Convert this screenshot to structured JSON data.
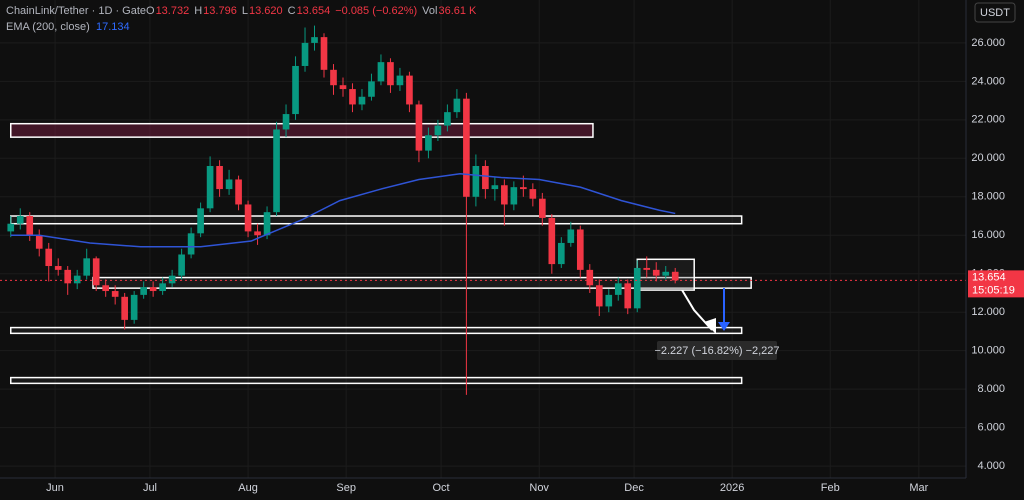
{
  "header": {
    "symbol": "ChainLink/Tether · 1D · Gate",
    "quote": [
      {
        "label": "O",
        "value": 13.732
      },
      {
        "label": "H",
        "value": 13.796
      },
      {
        "label": "L",
        "value": 13.62
      },
      {
        "label": "C",
        "value": 13.654
      }
    ],
    "change": "−0.085 (−0.62%)",
    "volume_label": "Vol",
    "volume": "36.61 K",
    "indicator": "EMA (200, close)",
    "indicator_value": 17.134
  },
  "currency_button": "USDT",
  "chart_data": {
    "type": "candlestick",
    "x": [
      -14,
      -11,
      -8,
      -5,
      -2,
      1,
      4,
      7,
      10,
      13,
      16,
      19,
      22,
      25,
      28,
      31,
      34,
      37,
      40,
      43,
      46,
      49,
      52,
      55,
      58,
      61,
      64,
      67,
      70,
      73,
      76,
      79,
      82,
      85,
      88,
      91,
      94,
      97,
      100,
      103,
      106,
      109,
      112,
      115,
      118,
      121,
      124,
      127,
      130,
      133,
      136,
      139,
      142,
      145,
      148,
      151,
      154,
      157,
      160,
      163,
      166,
      169,
      172,
      175,
      178,
      181,
      184,
      187,
      190,
      193,
      196
    ],
    "open": [
      16.2,
      16.6,
      17.0,
      16.0,
      15.3,
      14.4,
      14.2,
      13.5,
      13.9,
      14.8,
      13.4,
      13.1,
      12.8,
      11.6,
      12.9,
      13.3,
      13.1,
      13.5,
      13.9,
      15.0,
      16.1,
      17.4,
      19.6,
      18.4,
      18.9,
      17.6,
      16.2,
      16.0,
      17.2,
      21.5,
      22.3,
      24.8,
      26.0,
      26.3,
      24.6,
      23.8,
      23.6,
      22.8,
      23.2,
      24.0,
      25.0,
      23.8,
      24.3,
      22.8,
      20.4,
      21.2,
      21.7,
      22.4,
      23.1,
      18.0,
      19.6,
      18.4,
      18.6,
      17.6,
      18.5,
      18.4,
      17.9,
      16.9,
      14.5,
      15.6,
      16.3,
      14.2,
      13.4,
      12.3,
      12.9,
      13.5,
      12.2,
      14.3,
      14.2,
      13.9,
      14.1
    ],
    "high": [
      17.0,
      17.4,
      17.2,
      16.3,
      15.6,
      14.8,
      14.4,
      14.2,
      15.3,
      14.9,
      13.7,
      13.4,
      13.0,
      13.1,
      13.6,
      13.6,
      13.8,
      14.2,
      15.3,
      16.4,
      17.7,
      20.1,
      19.9,
      19.4,
      19.1,
      17.8,
      16.6,
      17.5,
      21.9,
      22.8,
      25.3,
      26.8,
      26.9,
      26.5,
      24.9,
      24.2,
      23.9,
      23.6,
      24.4,
      25.4,
      25.2,
      24.7,
      24.5,
      23.0,
      21.6,
      22.0,
      22.8,
      23.6,
      23.4,
      20.2,
      19.9,
      19.0,
      18.9,
      18.8,
      19.1,
      18.7,
      18.2,
      17.1,
      15.9,
      16.7,
      16.5,
      14.5,
      13.7,
      13.2,
      13.8,
      13.7,
      14.7,
      14.9,
      14.6,
      14.4,
      14.3
    ],
    "low": [
      15.9,
      16.3,
      15.7,
      14.9,
      13.6,
      13.9,
      12.9,
      13.2,
      13.7,
      13.1,
      12.8,
      12.4,
      11.1,
      11.4,
      12.7,
      12.8,
      12.9,
      13.3,
      13.7,
      14.8,
      15.9,
      17.2,
      18.0,
      18.1,
      17.3,
      15.9,
      15.5,
      15.8,
      17.0,
      21.1,
      22.0,
      24.5,
      25.6,
      24.2,
      23.3,
      23.2,
      22.4,
      22.5,
      23.0,
      23.8,
      23.4,
      23.5,
      22.4,
      19.8,
      20.0,
      20.9,
      21.4,
      22.1,
      7.7,
      17.5,
      17.9,
      17.8,
      16.5,
      17.3,
      18.0,
      17.5,
      16.5,
      14.0,
      14.3,
      15.4,
      13.8,
      13.0,
      11.8,
      12.0,
      12.6,
      11.9,
      12.0,
      13.8,
      13.6,
      13.7,
      13.5
    ],
    "close": [
      16.6,
      17.0,
      16.0,
      15.3,
      14.4,
      14.2,
      13.5,
      13.9,
      14.8,
      13.4,
      13.1,
      12.8,
      11.6,
      12.9,
      13.3,
      13.1,
      13.5,
      13.9,
      15.0,
      16.1,
      17.4,
      19.6,
      18.4,
      18.9,
      17.6,
      16.2,
      16.0,
      17.2,
      21.5,
      22.3,
      24.8,
      26.0,
      26.3,
      24.6,
      23.8,
      23.6,
      22.8,
      23.2,
      24.0,
      25.0,
      23.8,
      24.3,
      22.8,
      20.4,
      21.2,
      21.7,
      22.4,
      23.1,
      18.0,
      19.6,
      18.4,
      18.6,
      17.6,
      18.5,
      18.4,
      17.9,
      16.9,
      14.5,
      15.6,
      16.3,
      14.2,
      13.4,
      12.3,
      12.9,
      13.5,
      12.2,
      14.3,
      14.2,
      13.9,
      14.1,
      13.654
    ],
    "up_color": "#089981",
    "down_color": "#f23645",
    "ema": {
      "x": [
        -14,
        -5,
        11,
        27,
        46,
        62,
        78,
        90,
        103,
        115,
        128,
        141,
        153,
        166,
        179,
        191,
        196
      ],
      "values": [
        16.0,
        16.0,
        15.6,
        15.4,
        15.4,
        15.7,
        16.8,
        17.8,
        18.4,
        18.9,
        19.2,
        19.0,
        18.9,
        18.5,
        17.8,
        17.3,
        17.134
      ],
      "color": "#2f54d6"
    },
    "zones": [
      {
        "x": [
          -14,
          170
        ],
        "y": [
          21.1,
          21.8
        ]
      },
      {
        "x": [
          -14,
          217
        ],
        "y": [
          16.6,
          17.0
        ]
      },
      {
        "x": [
          12,
          220
        ],
        "y": [
          13.25,
          13.8
        ]
      },
      {
        "x": [
          -14,
          217
        ],
        "y": [
          10.9,
          11.2
        ]
      },
      {
        "x": [
          -14,
          217
        ],
        "y": [
          8.3,
          8.6
        ]
      },
      {
        "x": [
          184,
          202
        ],
        "y": [
          13.15,
          14.75
        ]
      }
    ],
    "last_price": 13.654,
    "countdown": "15:05:19",
    "annotation": "−2.227 (−16.82%) −2,227",
    "xlim": [
      -17.4,
      287.9
    ],
    "ylim": [
      3.38,
      28.23
    ],
    "xticks": [
      {
        "value": 0,
        "label": "Jun"
      },
      {
        "value": 30,
        "label": "Jul"
      },
      {
        "value": 61,
        "label": "Aug"
      },
      {
        "value": 92,
        "label": "Sep"
      },
      {
        "value": 122,
        "label": "Oct"
      },
      {
        "value": 153,
        "label": "Nov"
      },
      {
        "value": 183,
        "label": "Dec"
      },
      {
        "value": 214,
        "label": "2026"
      },
      {
        "value": 245,
        "label": "Feb"
      },
      {
        "value": 273,
        "label": "Mar"
      }
    ],
    "yticks": [
      {
        "value": 4,
        "label": "4.000"
      },
      {
        "value": 6,
        "label": "6.000"
      },
      {
        "value": 8,
        "label": "8.000"
      },
      {
        "value": 10,
        "label": "10.000"
      },
      {
        "value": 12,
        "label": "12.000"
      },
      {
        "value": 14,
        "label": "14.000"
      },
      {
        "value": 16,
        "label": "16.000"
      },
      {
        "value": 18,
        "label": "18.000"
      },
      {
        "value": 20,
        "label": "20.000"
      },
      {
        "value": 22,
        "label": "22.000"
      },
      {
        "value": 24,
        "label": "24.000"
      },
      {
        "value": 26,
        "label": "26.000"
      }
    ],
    "grid": true
  }
}
